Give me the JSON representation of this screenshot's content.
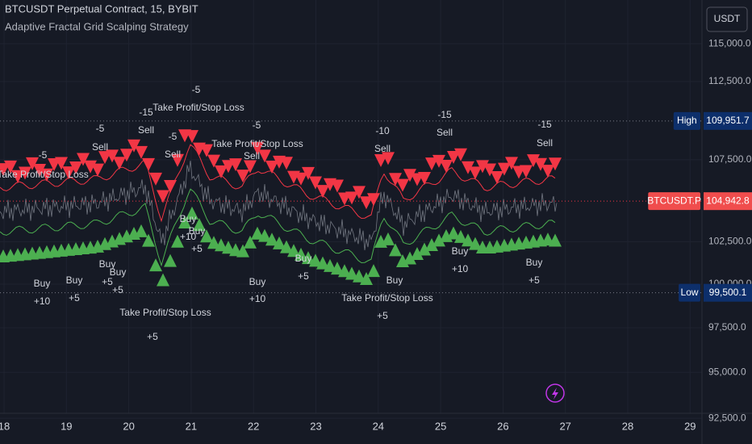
{
  "header": {
    "title": "BTCUSDT Perpetual Contract, 15, BYBIT",
    "subtitle": "Adaptive Fractal Grid Scalping Strategy",
    "currency": "USDT"
  },
  "price_axis": {
    "log_scale": true,
    "ticks": [
      {
        "value": 115000,
        "label": "115,000.0"
      },
      {
        "value": 112500,
        "label": "112,500.0"
      },
      {
        "value": 107500,
        "label": "107,500.0"
      },
      {
        "value": 102500,
        "label": "102,500.0"
      },
      {
        "value": 100000,
        "label": "100,000.0"
      },
      {
        "value": 97500,
        "label": "97,500.0"
      },
      {
        "value": 95000,
        "label": "95,000.0"
      },
      {
        "value": 92500,
        "label": "92,500.0"
      }
    ]
  },
  "time_axis": {
    "labels": [
      "18",
      "19",
      "20",
      "21",
      "22",
      "23",
      "24",
      "25",
      "26",
      "27",
      "28",
      "29"
    ]
  },
  "badges": [
    {
      "name": "High",
      "value": 109951.7,
      "label": "109,951.7",
      "color": "#0d2f6b"
    },
    {
      "name": "BTCUSDT.P",
      "value": 104942.8,
      "label": "104,942.8",
      "color": "#f04d4d"
    },
    {
      "name": "Low",
      "value": 99500.1,
      "label": "99,500.1",
      "color": "#0d2f6b"
    }
  ],
  "annotations": [
    "Take Profit/Stop Loss",
    "-5",
    "-5",
    "Sell",
    "-15",
    "Sell",
    "-5",
    "Take Profit/Stop Loss",
    "-5",
    "Sell",
    "-5",
    "Take Profit/Stop Loss",
    "Sell",
    "-10",
    "Sell",
    "-15",
    "Sell",
    "-15",
    "Sell",
    "Buy",
    "+10",
    "Buy",
    "+5",
    "Buy",
    "+5",
    "Buy",
    "+5",
    "Take Profit/Stop Loss",
    "+5",
    "Buy",
    "+10",
    "Buy",
    "+5",
    "Buy",
    "+10",
    "Buy",
    "+5",
    "Take Profit/Stop Loss",
    "+5",
    "Buy",
    "Buy",
    "+10",
    "Buy",
    "+5"
  ]
}
